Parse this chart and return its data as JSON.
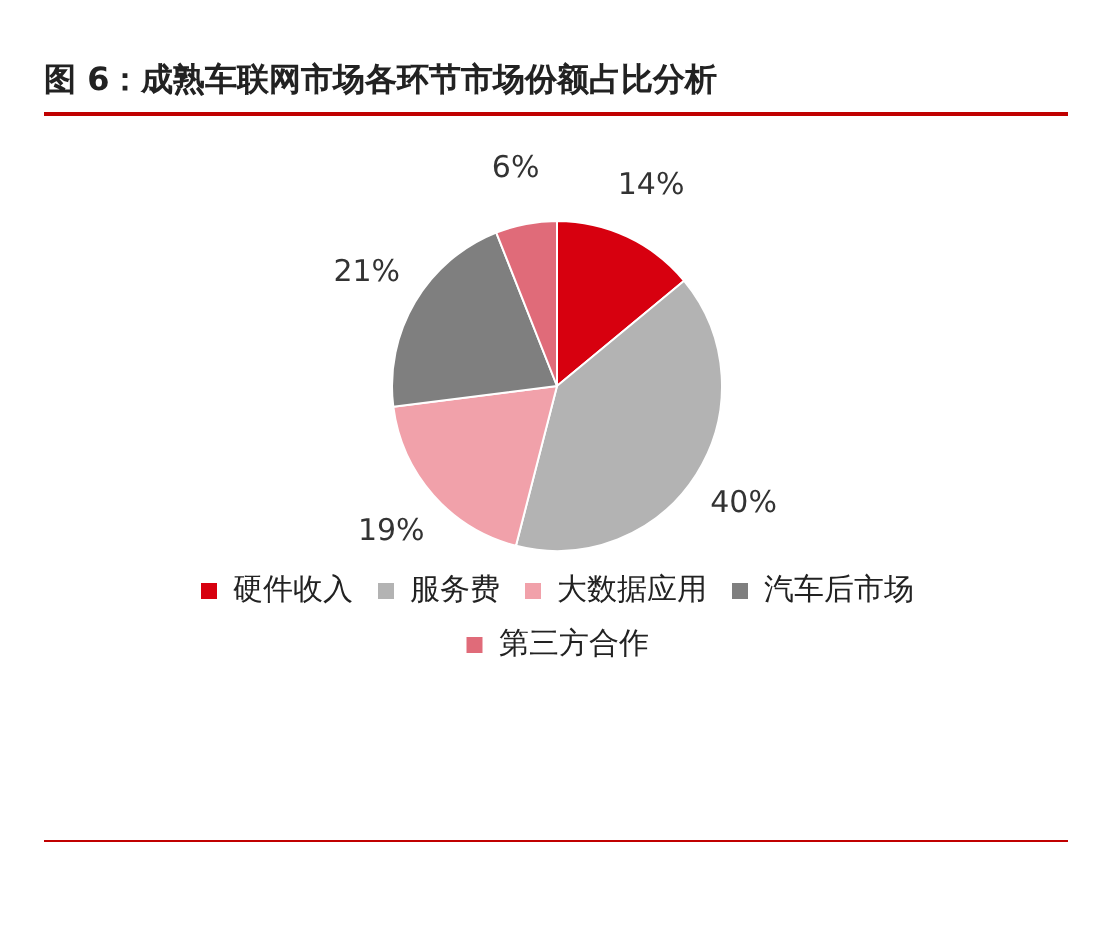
{
  "chart_data": {
    "type": "pie",
    "title": "图 6：成熟车联网市场各环节市场份额占比分析",
    "categories": [
      "硬件收入",
      "服务费",
      "大数据应用",
      "汽车后市场",
      "第三方合作"
    ],
    "values": [
      14,
      40,
      19,
      21,
      6
    ],
    "value_labels": [
      "14%",
      "40%",
      "19%",
      "21%",
      "6%"
    ],
    "colors": [
      "#d7000f",
      "#b3b3b3",
      "#f1a1aa",
      "#7f7f7f",
      "#e06b79"
    ],
    "legend": "bottom"
  }
}
